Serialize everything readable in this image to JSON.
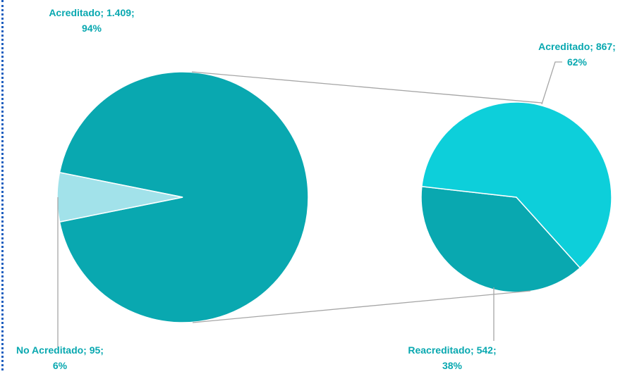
{
  "colors": {
    "main_big": "#09a8b0",
    "main_small": "#a2e2ea",
    "sub_a": "#0dcfda",
    "sub_b": "#09a8b0",
    "label": "#09a8b0",
    "connector": "#a6a6a6",
    "frame": "#1f5fbf"
  },
  "chart_data": {
    "type": "pie",
    "subtype": "pie-of-pie",
    "main_pie": {
      "slices": [
        {
          "label": "Acreditado",
          "value": 1409,
          "percent": "94%",
          "text": "Acreditado; 1.409; 94%"
        },
        {
          "label": "No Acreditado",
          "value": 95,
          "percent": "6%",
          "text": "No Acreditado; 95; 6%"
        }
      ]
    },
    "secondary_pie": {
      "exploded_from": "Acreditado",
      "slices": [
        {
          "label": "Acreditado",
          "value": 867,
          "percent": "62%",
          "text": "Acreditado; 867; 62%"
        },
        {
          "label": "Reacreditado",
          "value": 542,
          "percent": "38%",
          "text": "Reacreditado; 542; 38%"
        }
      ]
    },
    "title": "",
    "legend": "none"
  }
}
